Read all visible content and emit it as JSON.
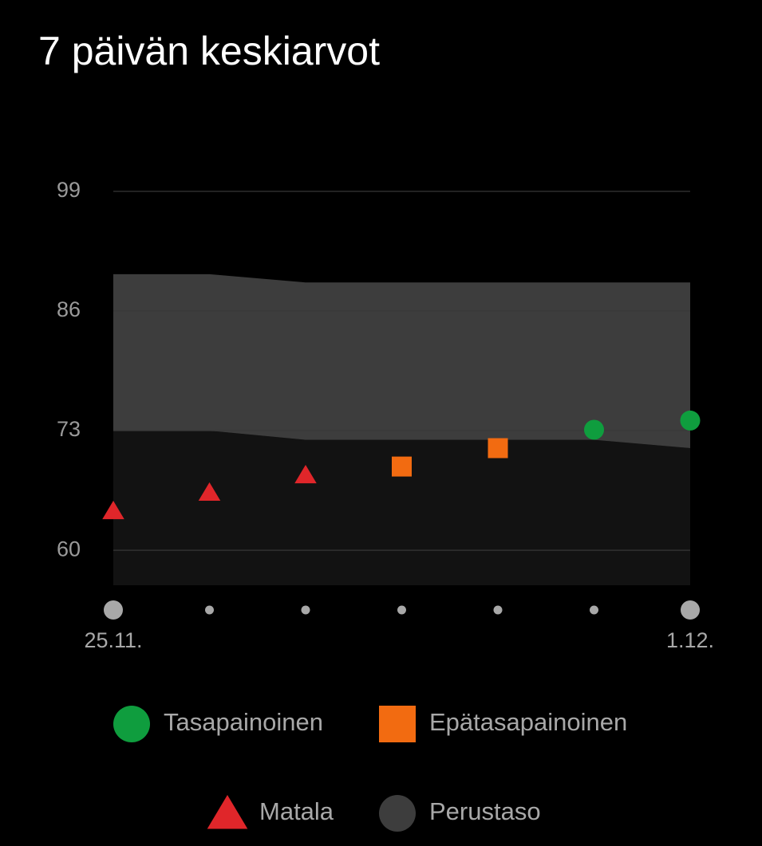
{
  "chart_data": {
    "type": "scatter",
    "title": "7 päivän keskiarvot",
    "categories": [
      "25.11.",
      null,
      null,
      null,
      null,
      null,
      "1.12."
    ],
    "ylim": [
      56.2,
      99
    ],
    "yticks": [
      99,
      86,
      73,
      60
    ],
    "grid": true,
    "band": {
      "name": "Perustaso",
      "color": "#3d3d3d",
      "upper": [
        90,
        90,
        89.1,
        89.1,
        89.1,
        89.1,
        89.1
      ],
      "lower": [
        73,
        73,
        72,
        72,
        72,
        72,
        71.1
      ]
    },
    "series": [
      {
        "name": "Tasapainoinen",
        "color": "#0f9d3e",
        "marker": "circle",
        "values": [
          null,
          null,
          null,
          null,
          null,
          73.1,
          74.1
        ]
      },
      {
        "name": "Epätasapainoinen",
        "color": "#f26b11",
        "marker": "square",
        "values": [
          null,
          null,
          null,
          69.1,
          71.1,
          null,
          null
        ]
      },
      {
        "name": "Matala",
        "color": "#e0262a",
        "marker": "triangle",
        "values": [
          64.3,
          66.3,
          68.2,
          null,
          null,
          null,
          null
        ]
      }
    ]
  }
}
